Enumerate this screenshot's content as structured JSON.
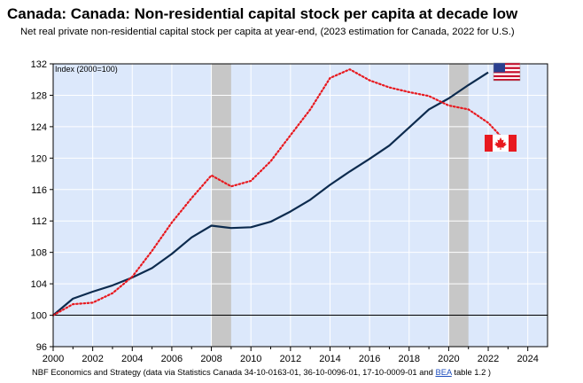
{
  "title": "Canada: Canada: Non-residential capital stock per capita at decade low",
  "subtitle": "Net real private non-residential capital stock per capita at year-end, (2023 estimation for Canada, 2022 for U.S.)",
  "source": {
    "prefix": "NBF Economics and Strategy (data via Statistics Canada 34-10-0163-01, 36-10-0096-01, 17-10-0009-01 and ",
    "link": "BEA",
    "suffix": " table 1.2 )"
  },
  "icons": {
    "us": "us-flag-icon",
    "canada": "canada-flag-icon"
  },
  "chart_data": {
    "type": "line",
    "ylabel": "Index (2000=100)",
    "xlim": [
      2000,
      2025
    ],
    "ylim": [
      96,
      132
    ],
    "x_ticks": [
      2000,
      2002,
      2004,
      2006,
      2008,
      2010,
      2012,
      2014,
      2016,
      2018,
      2020,
      2022,
      2024
    ],
    "y_ticks": [
      96,
      100,
      104,
      108,
      112,
      116,
      120,
      124,
      128,
      132
    ],
    "reference_line": 100,
    "recession_bands": [
      [
        2008,
        2009
      ],
      [
        2020,
        2021
      ]
    ],
    "grid": true,
    "colors": {
      "us": "#0d2b4e",
      "canada": "#e8191f",
      "band": "#c7c7c7",
      "plot_bg": "#dce8fb"
    },
    "series": [
      {
        "key": "us",
        "style": "solid",
        "x": [
          2000,
          2001,
          2002,
          2003,
          2004,
          2005,
          2006,
          2007,
          2008,
          2009,
          2010,
          2011,
          2012,
          2013,
          2014,
          2015,
          2016,
          2017,
          2018,
          2019,
          2020,
          2021,
          2022
        ],
        "values": [
          100.0,
          102.1,
          103.0,
          103.8,
          104.8,
          106.0,
          107.8,
          109.9,
          111.4,
          111.1,
          111.2,
          111.9,
          113.2,
          114.7,
          116.6,
          118.3,
          119.9,
          121.6,
          123.9,
          126.2,
          127.6,
          129.3,
          130.9
        ]
      },
      {
        "key": "canada",
        "style": "dotted",
        "x": [
          2000,
          2001,
          2002,
          2003,
          2004,
          2005,
          2006,
          2007,
          2008,
          2009,
          2010,
          2011,
          2012,
          2013,
          2014,
          2015,
          2016,
          2017,
          2018,
          2019,
          2020,
          2021,
          2022,
          2023
        ],
        "values": [
          100.0,
          101.4,
          101.6,
          102.8,
          104.9,
          108.2,
          111.8,
          114.9,
          117.8,
          116.4,
          117.1,
          119.6,
          122.9,
          126.2,
          130.2,
          131.3,
          129.9,
          129.0,
          128.4,
          127.9,
          126.7,
          126.2,
          124.5,
          121.8
        ]
      }
    ]
  }
}
